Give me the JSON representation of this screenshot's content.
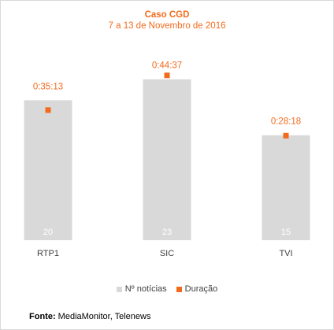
{
  "title": "Caso CGD",
  "subtitle": "7 a 13 de Novembro de 2016",
  "colors": {
    "bar": "#d9d9d9",
    "marker": "#f26b1d",
    "text_accent": "#f26b1d"
  },
  "legend": [
    {
      "label": "Nº notícias",
      "color": "#d9d9d9"
    },
    {
      "label": "Duração",
      "color": "#f26b1d"
    }
  ],
  "source": {
    "label": "Fonte:",
    "text": "MediaMonitor, Telenews"
  },
  "chart_data": {
    "type": "bar",
    "categories": [
      "RTP1",
      "SIC",
      "TVI"
    ],
    "series": [
      {
        "name": "Nº notícias",
        "values": [
          20,
          23,
          15
        ],
        "labels": [
          "20",
          "23",
          "15"
        ]
      },
      {
        "name": "Duração",
        "values": [
          "0:35:13",
          "0:44:37",
          "0:28:18"
        ],
        "seconds": [
          2113,
          2677,
          1698
        ]
      }
    ],
    "title": "Caso CGD",
    "subtitle": "7 a 13 de Novembro de 2016",
    "ylim": [
      0,
      24.2
    ],
    "grid": false,
    "legend_position": "bottom"
  }
}
